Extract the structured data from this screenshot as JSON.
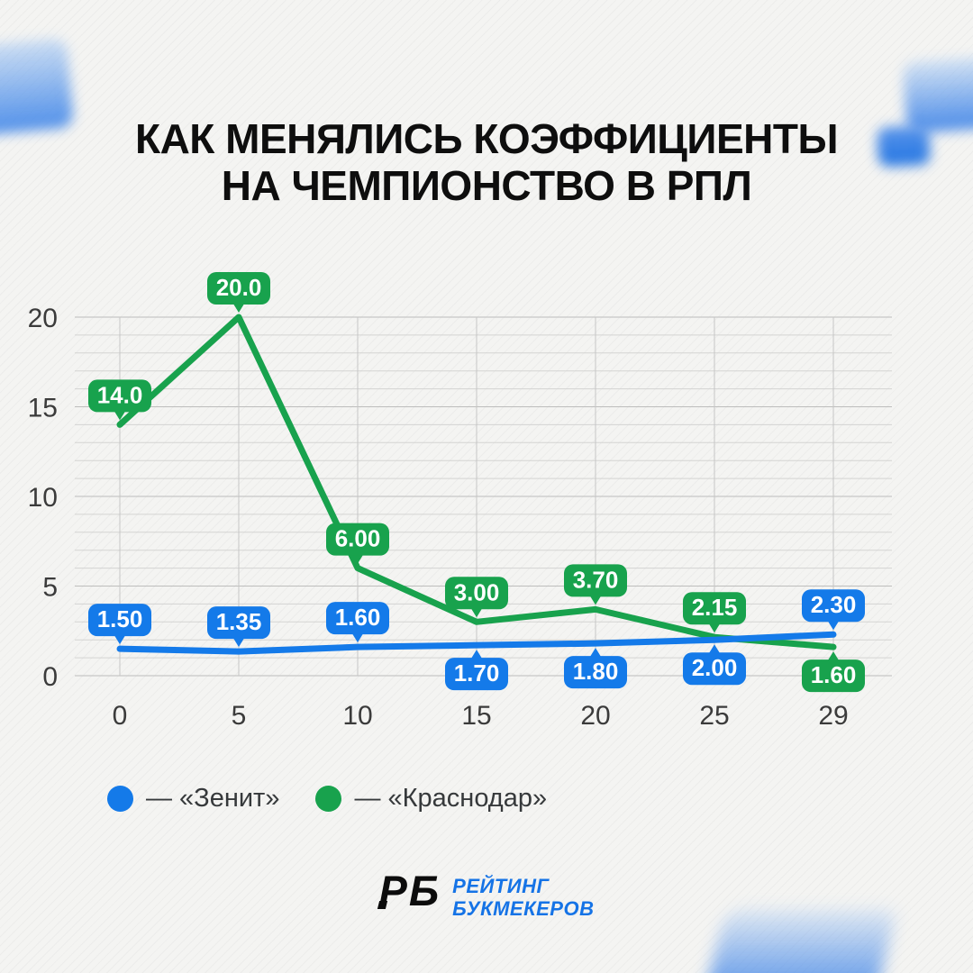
{
  "title": {
    "line1": "КАК МЕНЯЛИСЬ КОЭФФИЦИЕНТЫ",
    "line2": "НА ЧЕМПИОНСТВО В РПЛ"
  },
  "chart_data": {
    "type": "line",
    "categories": [
      "0",
      "5",
      "10",
      "15",
      "20",
      "25",
      "29"
    ],
    "y_ticks": [
      "0",
      "5",
      "10",
      "15",
      "20"
    ],
    "ylim": [
      0,
      20
    ],
    "grid": {
      "horizontal_step": 1,
      "vertical": "one per category",
      "visible": true
    },
    "legend_position": "bottom-left",
    "series": [
      {
        "name": "«Краснодар»",
        "color": "#18a24d",
        "values": [
          14.0,
          20.0,
          6.0,
          3.0,
          3.7,
          2.15,
          1.6
        ],
        "labels": [
          "14.0",
          "20.0",
          "6.00",
          "3.00",
          "3.70",
          "2.15",
          "1.60"
        ],
        "label_side": [
          "above",
          "above",
          "above",
          "above",
          "above",
          "above",
          "below"
        ]
      },
      {
        "name": "«Зенит»",
        "color": "#147ae9",
        "values": [
          1.5,
          1.35,
          1.6,
          1.7,
          1.8,
          2.0,
          2.3
        ],
        "labels": [
          "1.50",
          "1.35",
          "1.60",
          "1.70",
          "1.80",
          "2.00",
          "2.30"
        ],
        "label_side": [
          "above",
          "above",
          "above",
          "below",
          "below",
          "below",
          "above"
        ]
      }
    ]
  },
  "legend": {
    "items": [
      {
        "label": "— «Зенит»",
        "color": "#147ae9"
      },
      {
        "label": "— «Краснодар»",
        "color": "#18a24d"
      }
    ]
  },
  "footer_logo": {
    "monogram": "РБ",
    "line1": "РЕЙТИНГ",
    "line2": "БУКМЕКЕРОВ",
    "text_color": "#1573e6",
    "monogram_color": "#0c0c0c"
  },
  "colors": {
    "background": "#f4f4f2",
    "gridline_minor": "#d3d3d2",
    "gridline_major": "#bdbdbc",
    "axis_text": "#3b3b3b",
    "badge_text": "#ffffff"
  }
}
